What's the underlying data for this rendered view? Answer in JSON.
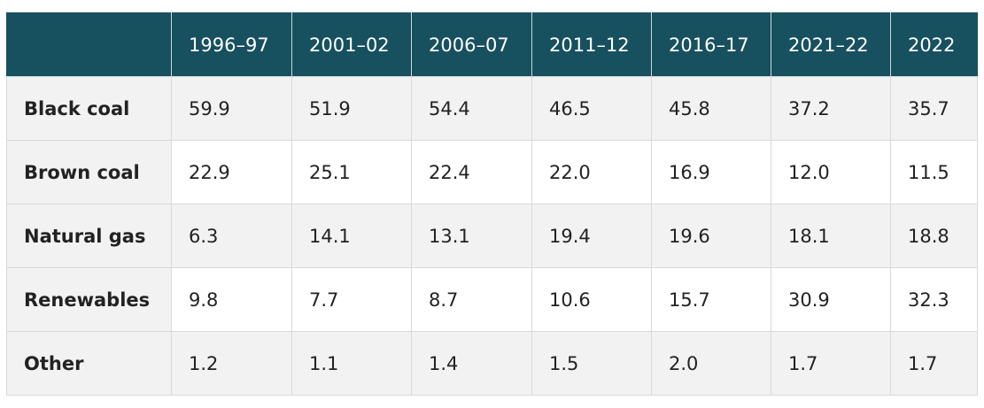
{
  "colors": {
    "header_bg": "#17505f",
    "header_text": "#ffffff",
    "row_band": "#f2f2f2",
    "row_plain": "#ffffff",
    "border": "#d9d9d9"
  },
  "chart_data": {
    "type": "table",
    "corner": "",
    "columns": [
      "1996–97",
      "2001–02",
      "2006–07",
      "2011–12",
      "2016–17",
      "2021–22",
      "2022"
    ],
    "rows": [
      {
        "label": "Black coal",
        "values": [
          "59.9",
          "51.9",
          "54.4",
          "46.5",
          "45.8",
          "37.2",
          "35.7"
        ]
      },
      {
        "label": "Brown coal",
        "values": [
          "22.9",
          "25.1",
          "22.4",
          "22.0",
          "16.9",
          "12.0",
          "11.5"
        ]
      },
      {
        "label": "Natural gas",
        "values": [
          "6.3",
          "14.1",
          "13.1",
          "19.4",
          "19.6",
          "18.1",
          "18.8"
        ]
      },
      {
        "label": "Renewables",
        "values": [
          "9.8",
          "7.7",
          "8.7",
          "10.6",
          "15.7",
          "30.9",
          "32.3"
        ]
      },
      {
        "label": "Other",
        "values": [
          "1.2",
          "1.1",
          "1.4",
          "1.5",
          "2.0",
          "1.7",
          "1.7"
        ]
      }
    ]
  }
}
